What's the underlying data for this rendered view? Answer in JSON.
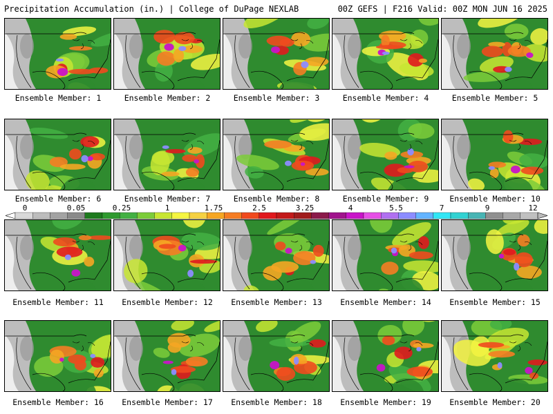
{
  "header": {
    "left": "Precipitation Accumulation (in.) | College of DuPage NEXLAB",
    "right": "00Z GEFS | F216 Valid: 00Z MON JUN 16 2025"
  },
  "members": [
    {
      "label": "Ensemble Member: 1"
    },
    {
      "label": "Ensemble Member: 2"
    },
    {
      "label": "Ensemble Member: 3"
    },
    {
      "label": "Ensemble Member: 4"
    },
    {
      "label": "Ensemble Member: 5"
    },
    {
      "label": "Ensemble Member: 6"
    },
    {
      "label": "Ensemble Member: 7"
    },
    {
      "label": "Ensemble Member: 8"
    },
    {
      "label": "Ensemble Member: 9"
    },
    {
      "label": "Ensemble Member: 10"
    },
    {
      "label": "Ensemble Member: 11"
    },
    {
      "label": "Ensemble Member: 12"
    },
    {
      "label": "Ensemble Member: 13"
    },
    {
      "label": "Ensemble Member: 14"
    },
    {
      "label": "Ensemble Member: 15"
    },
    {
      "label": "Ensemble Member: 16"
    },
    {
      "label": "Ensemble Member: 17"
    },
    {
      "label": "Ensemble Member: 18"
    },
    {
      "label": "Ensemble Member: 19"
    },
    {
      "label": "Ensemble Member: 20"
    }
  ],
  "colorbar": {
    "tick_labels": [
      "0",
      "0.05",
      "0.25",
      "1",
      "1.75",
      "2.5",
      "3.25",
      "4",
      "5.5",
      "7",
      "9",
      "12"
    ],
    "colors": [
      "#d9d9d9",
      "#bdbdbd",
      "#a3a3a3",
      "#8a8a8a",
      "#1e7a1e",
      "#2f9a2f",
      "#43b043",
      "#7ccc3a",
      "#c8e632",
      "#f5f542",
      "#f5d142",
      "#f5a623",
      "#f57d23",
      "#f04a1e",
      "#e0191e",
      "#c21a1a",
      "#a01c1c",
      "#8b1a4a",
      "#a0148c",
      "#c814c8",
      "#e650e6",
      "#b070f0",
      "#8c8cff",
      "#64b4ff",
      "#32e6f5",
      "#32d2d2",
      "#48b4b4",
      "#909090",
      "#a8a8a8",
      "#c0c0c0"
    ]
  }
}
